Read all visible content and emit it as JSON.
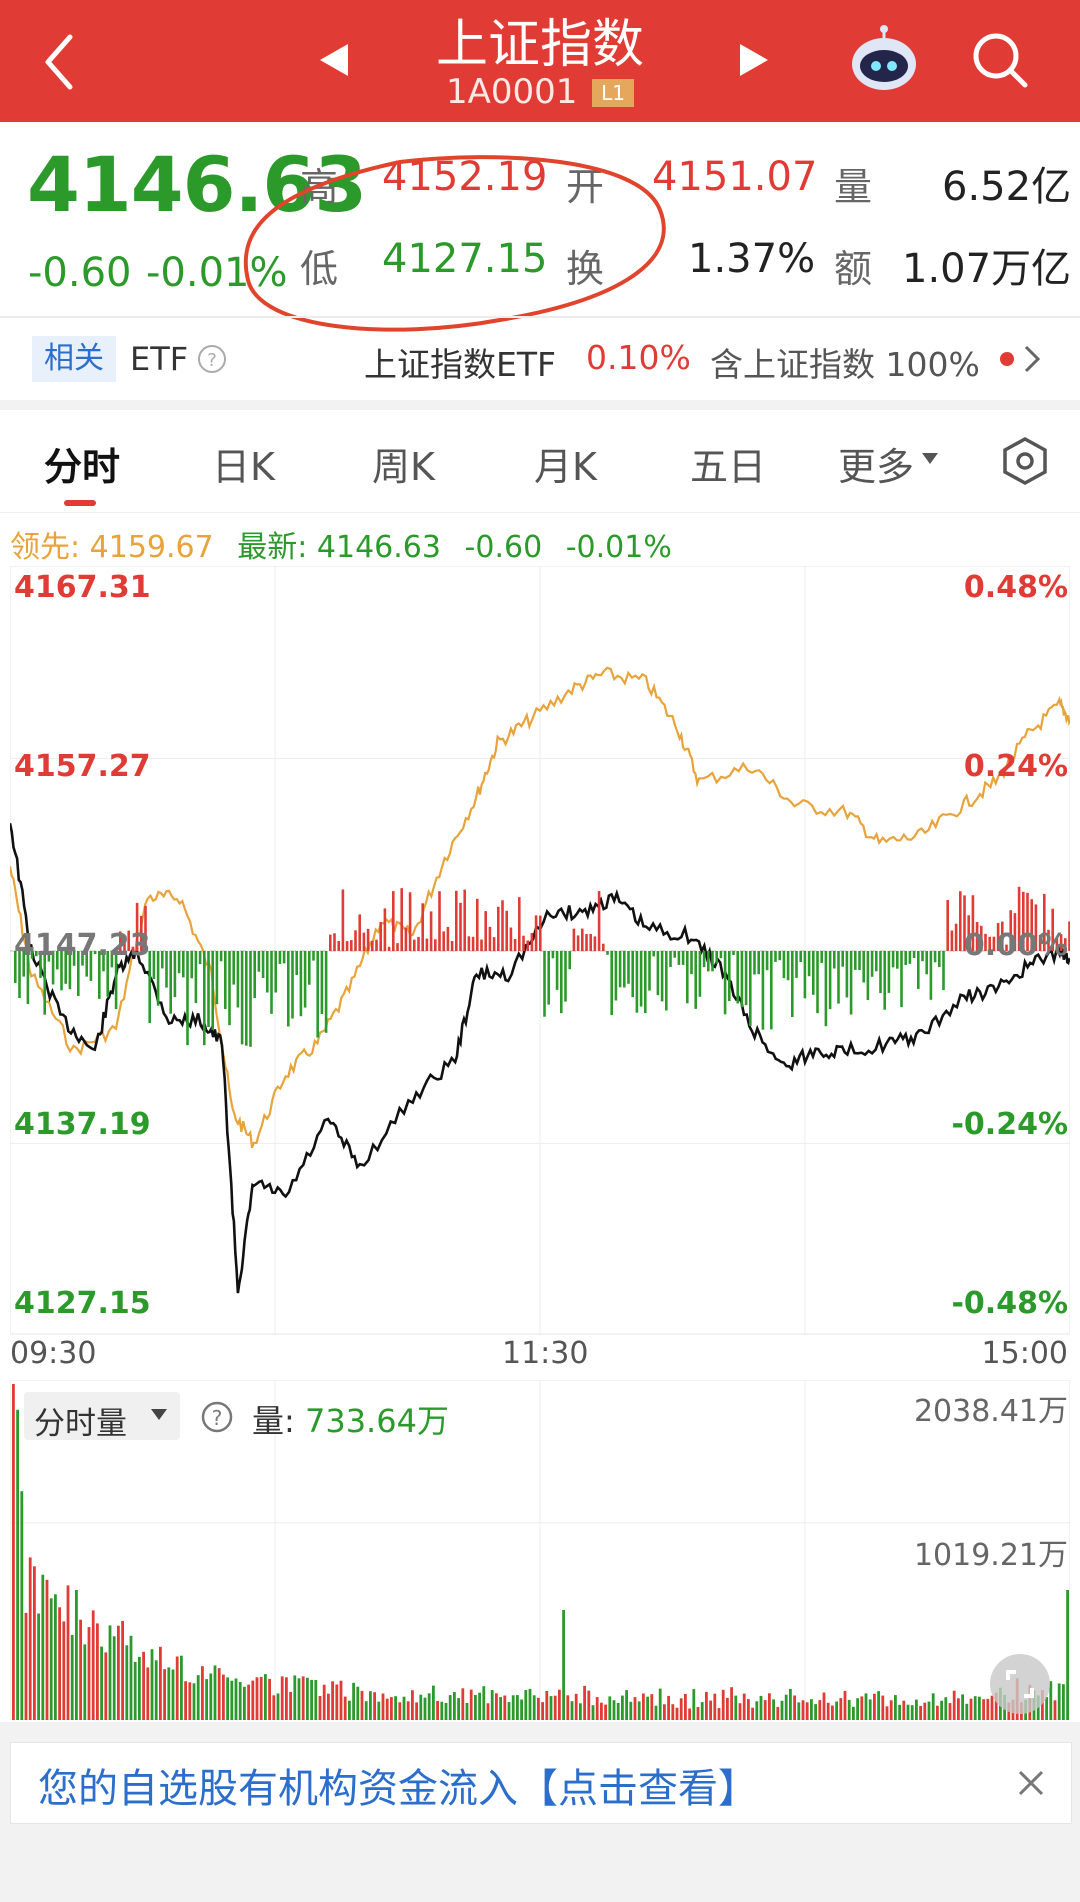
{
  "header": {
    "title": "上证指数",
    "code": "1A0001",
    "level_badge": "L1"
  },
  "quote": {
    "price": "4146.63",
    "change": "-0.60",
    "change_pct": "-0.01%",
    "labels": {
      "high": "高",
      "low": "低",
      "open": "开",
      "turnover": "换",
      "volume": "量",
      "amount": "额"
    },
    "high": "4152.19",
    "low": "4127.15",
    "open": "4151.07",
    "turnover_rate": "1.37%",
    "volume": "6.52亿",
    "amount": "1.07万亿"
  },
  "related": {
    "tag": "相关",
    "etf_label": "ETF",
    "etf_name": "上证指数ETF",
    "etf_change": "0.10%",
    "holding_text": "含上证指数 100%"
  },
  "tabs": [
    "分时",
    "日K",
    "周K",
    "月K",
    "五日",
    "更多"
  ],
  "price_chart": {
    "leader_label": "领先:",
    "leader_value": "4159.67",
    "latest_label": "最新:",
    "latest_value": "4146.63",
    "latest_change": "-0.60",
    "latest_pct": "-0.01%",
    "y_left": [
      "4167.31",
      "4157.27",
      "4147.23",
      "4137.19",
      "4127.15"
    ],
    "y_right": [
      "0.48%",
      "0.24%",
      "0.00%",
      "-0.24%",
      "-0.48%"
    ],
    "x_labels": [
      "09:30",
      "11:30",
      "15:00"
    ],
    "colors": {
      "up": "#e03c35",
      "down": "#2b9a2b",
      "price_line": "#111111",
      "leader_line": "#e8a33b"
    }
  },
  "volume_chart": {
    "selector_label": "分时量",
    "vol_label": "量:",
    "vol_value": "733.64万",
    "y_top": "2038.41万",
    "y_mid": "1019.21万"
  },
  "notice": {
    "text": "您的自选股有机构资金流入",
    "link": "【点击查看】"
  },
  "chart_data": {
    "type": "line",
    "x_range": [
      "09:30",
      "15:00"
    ],
    "ylim": [
      4127.15,
      4167.31
    ],
    "series": [],
    "note_values": {
      "prev_close": 4147.23
    }
  }
}
